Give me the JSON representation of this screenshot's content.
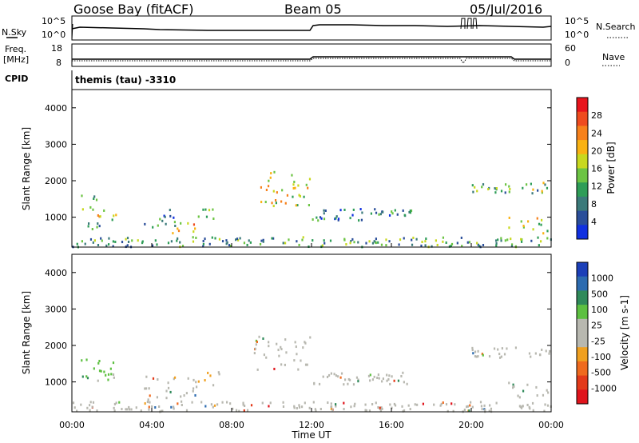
{
  "header": {
    "station": "Goose Bay (fitACF)",
    "beam": "Beam 05",
    "date": "05/Jul/2016"
  },
  "strip_noise": {
    "left_label": "N.Sky",
    "right_label": "N.Search",
    "left_ticks": [
      "10^5",
      "10^0"
    ],
    "right_ticks": [
      "10^5",
      "10^0"
    ]
  },
  "strip_freq": {
    "left_label_1": "Freq.",
    "left_label_2": "[MHz]",
    "left_ticks": [
      "18",
      "8"
    ],
    "right_label": "Nave",
    "right_ticks": [
      "60",
      "0"
    ]
  },
  "cpid": {
    "label": "CPID",
    "text": "themis (tau) -3310"
  },
  "power_panel": {
    "ylabel": "Slant Range [km]",
    "yticks": [
      "4000",
      "3000",
      "2000",
      "1000"
    ],
    "cbar_label": "Power [dB]",
    "cbar_ticks": [
      "28",
      "24",
      "20",
      "16",
      "12",
      "8",
      "4"
    ],
    "cbar_colors": [
      "#e8141c",
      "#ef4b1e",
      "#f7811b",
      "#f9b213",
      "#c8d81f",
      "#6cc443",
      "#2e9d57",
      "#3b7a7a",
      "#2a4e9a",
      "#1030e0"
    ]
  },
  "velocity_panel": {
    "ylabel": "Slant Range [km]",
    "yticks": [
      "4000",
      "3000",
      "2000",
      "1000"
    ],
    "cbar_label": "Velocity [m s-1]",
    "cbar_ticks": [
      "1000",
      "500",
      "100",
      "25",
      "-25",
      "-100",
      "-500",
      "-1000"
    ],
    "cbar_colors": [
      "#1b3fb8",
      "#2c6bb0",
      "#2f8a5a",
      "#5dc041",
      "#b8b8b0",
      "#b8b8b0",
      "#f0a020",
      "#ef6a1e",
      "#e33a1a",
      "#e0141c"
    ]
  },
  "xaxis": {
    "ticks": [
      "00:00",
      "04:00",
      "08:00",
      "12:00",
      "16:00",
      "20:00",
      "00:00"
    ],
    "label": "Time UT"
  },
  "chart_data": {
    "type": "heatmap",
    "title": "Goose Bay (fitACF) Beam 05 05/Jul/2016",
    "xlabel": "Time UT",
    "ylabel": "Slant Range [km]",
    "xlim_hours": [
      0,
      24
    ],
    "ylim_km": [
      180,
      4500
    ],
    "panels": [
      {
        "name": "Power",
        "unit": "dB",
        "colorbar_range": [
          0,
          30
        ],
        "echo_regions": [
          {
            "t": [
              0.3,
              1.2
            ],
            "r": [
              1100,
              1650
            ],
            "value": 12
          },
          {
            "t": [
              1.0,
              2.2
            ],
            "r": [
              850,
              1300
            ],
            "value": 16
          },
          {
            "t": [
              0.4,
              1.4
            ],
            "r": [
              650,
              900
            ],
            "value": 12
          },
          {
            "t": [
              3.6,
              5.2
            ],
            "r": [
              650,
              1200
            ],
            "value": 8
          },
          {
            "t": [
              5.0,
              6.3
            ],
            "r": [
              400,
              900
            ],
            "value": 18
          },
          {
            "t": [
              6.3,
              7.4
            ],
            "r": [
              900,
              1350
            ],
            "value": 12
          },
          {
            "t": [
              9.1,
              11.9
            ],
            "r": [
              1300,
              2250
            ],
            "value": 16
          },
          {
            "t": [
              12.0,
              17.0
            ],
            "r": [
              900,
              1250
            ],
            "value": 8
          },
          {
            "t": [
              20.0,
              23.9
            ],
            "r": [
              1650,
              1950
            ],
            "value": 12
          },
          {
            "t": [
              21.8,
              23.9
            ],
            "r": [
              550,
              1000
            ],
            "value": 18
          },
          {
            "t": [
              0.0,
              24.0
            ],
            "r": [
              180,
              450
            ],
            "value": 10
          }
        ]
      },
      {
        "name": "Velocity",
        "unit": "m s-1",
        "colorbar_range": [
          -1000,
          1000
        ],
        "echo_regions": [
          {
            "t": [
              0.3,
              2.2
            ],
            "r": [
              850,
              1650
            ],
            "value": 300
          },
          {
            "t": [
              3.6,
              6.3
            ],
            "r": [
              400,
              1200
            ],
            "value": 0
          },
          {
            "t": [
              6.3,
              7.4
            ],
            "r": [
              900,
              1350
            ],
            "value": -200
          },
          {
            "t": [
              9.1,
              11.9
            ],
            "r": [
              1300,
              2250
            ],
            "value": 0
          },
          {
            "t": [
              12.0,
              17.0
            ],
            "r": [
              900,
              1250
            ],
            "value": 0
          },
          {
            "t": [
              20.0,
              23.9
            ],
            "r": [
              1650,
              1950
            ],
            "value": 0
          },
          {
            "t": [
              21.8,
              23.9
            ],
            "r": [
              550,
              1000
            ],
            "value": 0
          },
          {
            "t": [
              0.0,
              24.0
            ],
            "r": [
              180,
              450
            ],
            "value": 0
          }
        ]
      }
    ]
  }
}
